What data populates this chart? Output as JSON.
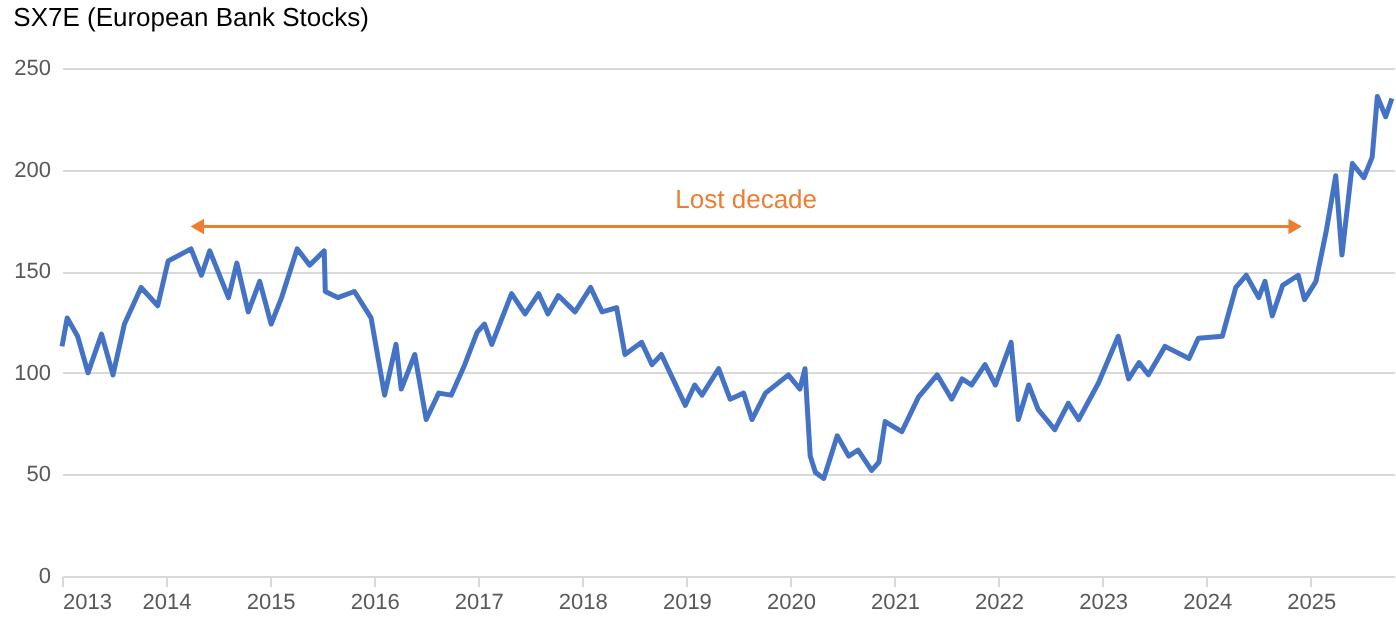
{
  "chart_data": {
    "type": "line",
    "title": "SX7E (European Bank Stocks)",
    "x": [
      2013.0,
      2013.05,
      2013.15,
      2013.25,
      2013.38,
      2013.49,
      2013.6,
      2013.76,
      2013.92,
      2014.02,
      2014.24,
      2014.34,
      2014.42,
      2014.6,
      2014.68,
      2014.79,
      2014.9,
      2015.01,
      2015.11,
      2015.26,
      2015.38,
      2015.52,
      2015.53,
      2015.65,
      2015.81,
      2015.97,
      2016.1,
      2016.21,
      2016.26,
      2016.39,
      2016.5,
      2016.62,
      2016.74,
      2016.87,
      2016.99,
      2017.06,
      2017.13,
      2017.32,
      2017.45,
      2017.58,
      2017.67,
      2017.77,
      2017.93,
      2018.08,
      2018.19,
      2018.33,
      2018.41,
      2018.57,
      2018.67,
      2018.76,
      2018.99,
      2019.08,
      2019.15,
      2019.31,
      2019.42,
      2019.55,
      2019.63,
      2019.76,
      2019.98,
      2020.09,
      2020.14,
      2020.19,
      2020.24,
      2020.32,
      2020.45,
      2020.56,
      2020.65,
      2020.78,
      2020.85,
      2020.91,
      2021.07,
      2021.23,
      2021.41,
      2021.55,
      2021.65,
      2021.74,
      2021.87,
      2021.97,
      2022.12,
      2022.19,
      2022.29,
      2022.38,
      2022.54,
      2022.67,
      2022.77,
      2022.96,
      2023.15,
      2023.25,
      2023.35,
      2023.44,
      2023.6,
      2023.83,
      2023.92,
      2024.15,
      2024.28,
      2024.38,
      2024.5,
      2024.56,
      2024.63,
      2024.73,
      2024.88,
      2024.94,
      2025.05,
      2025.15,
      2025.24,
      2025.3,
      2025.4,
      2025.51,
      2025.59,
      2025.64,
      2025.72,
      2025.78
    ],
    "series": [
      {
        "color": "#4472c4",
        "values": [
          113,
          127,
          118,
          100,
          119,
          99,
          124,
          142,
          133,
          155,
          161,
          148,
          160,
          137,
          154,
          130,
          145,
          124,
          137,
          161,
          153,
          160,
          140,
          137,
          140,
          127,
          89,
          114,
          92,
          109,
          77,
          90,
          89,
          104,
          120,
          124,
          114,
          139,
          129,
          139,
          129,
          138,
          130,
          142,
          130,
          132,
          109,
          115,
          104,
          109,
          84,
          94,
          89,
          102,
          87,
          90,
          77,
          90,
          99,
          92,
          102,
          59,
          51,
          48,
          69,
          59,
          62,
          52,
          56,
          76,
          71,
          88,
          99,
          87,
          97,
          94,
          104,
          94,
          115,
          77,
          94,
          82,
          72,
          85,
          77,
          95,
          118,
          97,
          105,
          99,
          113,
          107,
          117,
          118,
          142,
          148,
          137,
          145,
          128,
          143,
          148,
          136,
          145,
          170,
          197,
          158,
          203,
          196,
          206,
          236,
          226,
          235
        ]
      },
      {
        "name": "Lost decade",
        "type": "line",
        "marker": "triangle",
        "color": "#ed7d31",
        "x": [
          2014.3,
          2024.85
        ],
        "values": [
          172,
          172
        ]
      }
    ],
    "xlim": [
      2013,
      2025.8
    ],
    "xticks": [
      2013,
      2014,
      2015,
      2016,
      2017,
      2018,
      2019,
      2020,
      2021,
      2022,
      2023,
      2024,
      2025
    ],
    "ylim": [
      0,
      250
    ],
    "yticks": [
      0,
      50,
      100,
      150,
      200,
      250
    ],
    "grid": "y",
    "marker": "none",
    "line_style": "solid"
  }
}
